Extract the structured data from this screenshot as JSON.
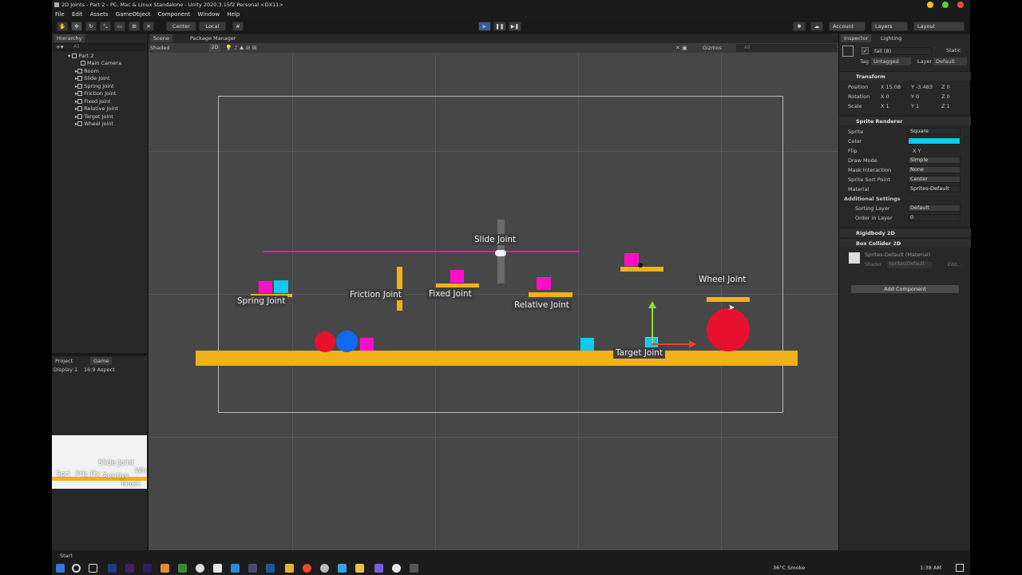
{
  "window": {
    "title": "2D Joints - Part 2 - PC, Mac & Linux Standalone - Unity 2020.3.15f2 Personal <DX11>"
  },
  "menu": [
    "File",
    "Edit",
    "Assets",
    "GameObject",
    "Component",
    "Window",
    "Help"
  ],
  "toolbar": {
    "pivot": "Center",
    "space": "Local",
    "account": "Account",
    "layers": "Layers",
    "layout": "Layout"
  },
  "hierarchy": {
    "tab": "Hierarchy",
    "search_placeholder": "All",
    "scene": "Part 2",
    "items": [
      "Main Camera",
      "Room",
      "Slide Joint",
      "Spring Joint",
      "Friction Joint",
      "Fixed Joint",
      "Relative Joint",
      "Target Joint",
      "Wheel Joint"
    ]
  },
  "scene_view": {
    "tabs": [
      "Scene",
      "Package Manager"
    ],
    "shading": "Shaded",
    "mode2d": "2D",
    "gizmos": "Gizmos",
    "search_placeholder": "All",
    "labels": {
      "slide": "Slide Joint",
      "spring": "Spring Joint",
      "friction": "Friction Joint",
      "fixed": "Fixed Joint",
      "relative": "Relative Joint",
      "target": "Target Joint",
      "wheel": "Wheel Joint"
    },
    "colors": {
      "orange": "#f0b11a",
      "magenta": "#ff10c8",
      "cyan": "#12c8ee",
      "red": "#e8112d",
      "blue": "#1469f0",
      "slide_line": "#e0209a"
    }
  },
  "project": {
    "tabs": [
      "Project",
      "Game"
    ],
    "display": "Display 1",
    "aspect": "16:9 Aspect"
  },
  "game_preview": {
    "labels": [
      "Slide Joint",
      "Spri",
      "Fric",
      "Fix",
      "Relative",
      "Wh",
      "Target"
    ]
  },
  "inspector": {
    "tabs": [
      "Inspector",
      "Lighting"
    ],
    "object_name": "fall (8)",
    "static_label": "Static",
    "tag_label": "Tag",
    "tag": "Untagged",
    "layer_label": "Layer",
    "layer": "Default",
    "transform": {
      "header": "Transform",
      "position_label": "Position",
      "position": [
        "X 15.08",
        "Y -3.483",
        "Z 0"
      ],
      "rotation_label": "Rotation",
      "rotation": [
        "X 0",
        "Y 0",
        "Z 0"
      ],
      "scale_label": "Scale",
      "scale": [
        "X 1",
        "Y 1",
        "Z 1"
      ]
    },
    "sprite_renderer": {
      "header": "Sprite Renderer",
      "sprite_label": "Sprite",
      "sprite": "Square",
      "color_label": "Color",
      "color": "#12c8ee",
      "flip_label": "Flip",
      "flip": "X   Y",
      "draw_mode_label": "Draw Mode",
      "draw_mode": "Simple",
      "mask_label": "Mask Interaction",
      "mask": "None",
      "sort_point_label": "Sprite Sort Point",
      "sort_point": "Center",
      "material_label": "Material",
      "material": "Sprites-Default",
      "additional": "Additional Settings",
      "sorting_layer_label": "Sorting Layer",
      "sorting_layer": "Default",
      "order_label": "Order in Layer",
      "order": "0"
    },
    "rigidbody": "Rigidbody 2D",
    "box_collider": "Box Collider 2D",
    "material_asset": "Sprites-Default (Material)",
    "shader_label": "Shader",
    "shader": "Sprites/Default",
    "edit_label": "Edit...",
    "add_component": "Add Component"
  },
  "status": {
    "start": "Start"
  },
  "taskbar": {
    "weather": "36°C  Smoke",
    "time": "1:38 AM"
  }
}
